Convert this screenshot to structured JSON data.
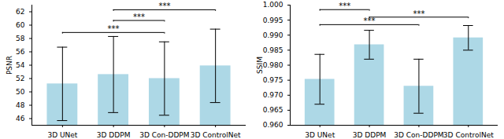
{
  "chart_data": [
    {
      "type": "bar",
      "ylabel": "PSNR",
      "categories": [
        "3D UNet",
        "3D DDPM",
        "3D Con-DDPM",
        "3D ControlNet"
      ],
      "values": [
        51.2,
        52.6,
        52.0,
        53.9
      ],
      "errors": [
        5.5,
        5.7,
        5.5,
        5.5
      ],
      "color": "#add8e6",
      "ylim": [
        45,
        63
      ],
      "yticks": [
        46,
        48,
        50,
        52,
        54,
        56,
        58,
        60,
        62
      ],
      "significance": [
        {
          "from": "3D DDPM",
          "to": "3D ControlNet",
          "y": 62.3,
          "label": "***"
        },
        {
          "from": "3D DDPM",
          "to": "3D Con-DDPM",
          "y": 60.7,
          "label": "***"
        },
        {
          "from": "3D UNet",
          "to": "3D Con-DDPM",
          "y": 58.9,
          "label": "***"
        }
      ]
    },
    {
      "type": "bar",
      "ylabel": "SSIM",
      "categories": [
        "3D UNet",
        "3D DDPM",
        "3D Con-DDPM",
        "3D ControlNet"
      ],
      "values": [
        0.9753,
        0.9868,
        0.973,
        0.9891
      ],
      "errors": [
        0.0083,
        0.0048,
        0.009,
        0.0041
      ],
      "color": "#add8e6",
      "ylim": [
        0.96,
        1.0
      ],
      "yticks": [
        {
          "value": 0.96,
          "label": "0.960"
        },
        0.965,
        {
          "value": 0.97,
          "label": "0.970"
        },
        0.975,
        {
          "value": 0.98,
          "label": "0.980"
        },
        0.985,
        {
          "value": 0.99,
          "label": "0.990"
        },
        0.995,
        {
          "value": 1.0,
          "label": "1.000"
        }
      ],
      "significance": [
        {
          "from": "3D UNet",
          "to": "3D DDPM",
          "y": 0.9985,
          "label": "***"
        },
        {
          "from": "3D DDPM",
          "to": "3D ControlNet",
          "y": 0.996,
          "label": "***"
        },
        {
          "from": "3D UNet",
          "to": "3D Con-DDPM",
          "y": 0.9935,
          "label": "***"
        }
      ]
    }
  ]
}
